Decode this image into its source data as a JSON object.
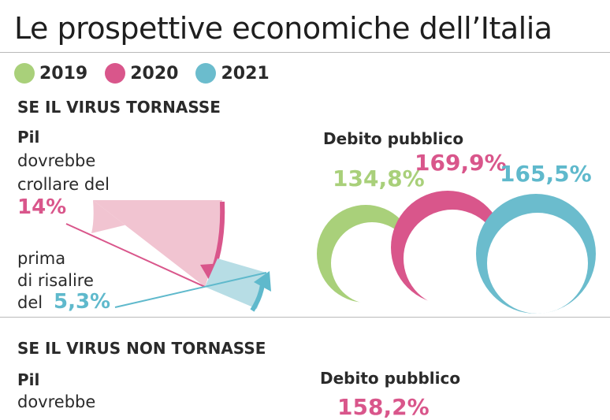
{
  "title": "Le prospettive economiche dell’Italia",
  "colors": {
    "y2019": "#a9d07a",
    "y2020": "#d9568b",
    "y2021": "#6bbccd",
    "pinkLight": "#f1c4d1",
    "blueLight": "#b7dde5"
  },
  "legend": [
    {
      "label": "2019",
      "color": "#a9d07a"
    },
    {
      "label": "2020",
      "color": "#d9568b"
    },
    {
      "label": "2021",
      "color": "#6bbccd"
    }
  ],
  "scenario1": {
    "heading": "SE IL VIRUS TORNASSE",
    "pil_label": "Pil",
    "drop_text_1": "dovrebbe",
    "drop_text_2": "crollare del",
    "drop_value": "14%",
    "rise_text_1": "prima",
    "rise_text_2": "di risalire",
    "rise_text_3": "del",
    "rise_value": "5,3%",
    "debt_title": "Debito pubblico",
    "debt": [
      {
        "year": "2019",
        "value": "134,8%"
      },
      {
        "year": "2020",
        "value": "169,9%"
      },
      {
        "year": "2021",
        "value": "165,5%"
      }
    ]
  },
  "scenario2": {
    "heading": "SE IL VIRUS NON TORNASSE",
    "pil_label": "Pil",
    "drop_text_1": "dovrebbe",
    "debt_title": "Debito pubblico",
    "debt_value_partial": "158,2%"
  }
}
